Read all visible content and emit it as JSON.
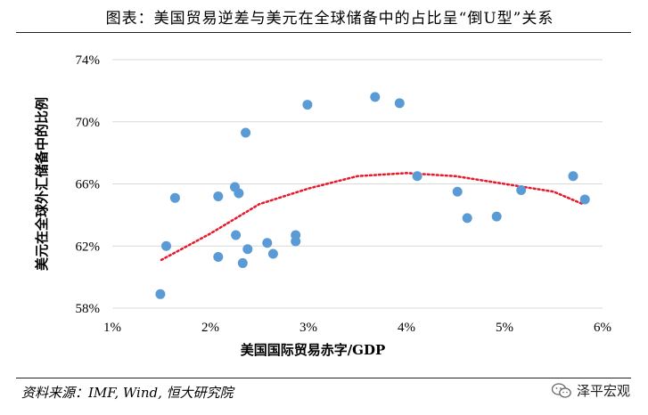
{
  "header": {
    "title": "图表：美国贸易逆差与美元在全球储备中的占比呈“倒U型”关系"
  },
  "footer": {
    "source": "资料来源：IMF, Wind, 恒大研究院",
    "brand": "泽平宏观"
  },
  "chart_data": {
    "type": "scatter",
    "title": "图表：美国贸易逆差与美元在全球储备中的占比呈“倒U型”关系",
    "xlabel": "美国国际贸易赤字/GDP",
    "ylabel": "美元在全球外汇储备中的比例",
    "xlim": [
      0.01,
      0.06
    ],
    "ylim": [
      0.58,
      0.74
    ],
    "xticks": [
      0.01,
      0.02,
      0.03,
      0.04,
      0.05,
      0.06
    ],
    "xtick_labels": [
      "1%",
      "2%",
      "3%",
      "4%",
      "5%",
      "6%"
    ],
    "yticks": [
      0.58,
      0.62,
      0.66,
      0.7,
      0.74
    ],
    "ytick_labels": [
      "58%",
      "62%",
      "66%",
      "70%",
      "74%"
    ],
    "grid": "horizontal",
    "point_color": "#5B9BD5",
    "trend_color": "#E8192C",
    "trendline": "polynomial (order 2), dotted",
    "points": [
      {
        "x": 0.0149,
        "y": 0.589
      },
      {
        "x": 0.0155,
        "y": 0.62
      },
      {
        "x": 0.0164,
        "y": 0.651
      },
      {
        "x": 0.0208,
        "y": 0.652
      },
      {
        "x": 0.0208,
        "y": 0.613
      },
      {
        "x": 0.0225,
        "y": 0.658
      },
      {
        "x": 0.0229,
        "y": 0.654
      },
      {
        "x": 0.0226,
        "y": 0.627
      },
      {
        "x": 0.0236,
        "y": 0.693
      },
      {
        "x": 0.0233,
        "y": 0.609
      },
      {
        "x": 0.0238,
        "y": 0.618
      },
      {
        "x": 0.0258,
        "y": 0.622
      },
      {
        "x": 0.0264,
        "y": 0.615
      },
      {
        "x": 0.0287,
        "y": 0.627
      },
      {
        "x": 0.0287,
        "y": 0.623
      },
      {
        "x": 0.0299,
        "y": 0.711
      },
      {
        "x": 0.0368,
        "y": 0.716
      },
      {
        "x": 0.0393,
        "y": 0.712
      },
      {
        "x": 0.0411,
        "y": 0.665
      },
      {
        "x": 0.0452,
        "y": 0.655
      },
      {
        "x": 0.0462,
        "y": 0.638
      },
      {
        "x": 0.0492,
        "y": 0.639
      },
      {
        "x": 0.0517,
        "y": 0.656
      },
      {
        "x": 0.057,
        "y": 0.665
      },
      {
        "x": 0.0582,
        "y": 0.65
      }
    ],
    "trend_curve": [
      {
        "x": 0.015,
        "y": 0.611
      },
      {
        "x": 0.02,
        "y": 0.628
      },
      {
        "x": 0.025,
        "y": 0.647
      },
      {
        "x": 0.03,
        "y": 0.657
      },
      {
        "x": 0.035,
        "y": 0.665
      },
      {
        "x": 0.04,
        "y": 0.667
      },
      {
        "x": 0.045,
        "y": 0.665
      },
      {
        "x": 0.05,
        "y": 0.66
      },
      {
        "x": 0.055,
        "y": 0.655
      },
      {
        "x": 0.058,
        "y": 0.647
      }
    ]
  }
}
